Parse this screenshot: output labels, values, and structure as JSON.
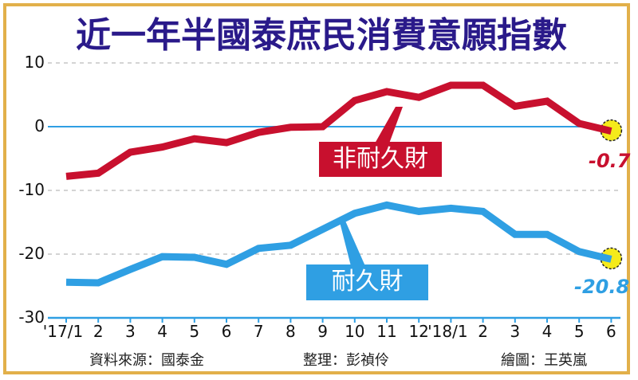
{
  "chart_data": {
    "type": "line",
    "title": "近一年半國泰庶民消費意願指數",
    "xlabel": "",
    "ylabel": "",
    "ylim": [
      -30,
      10
    ],
    "yticks": [
      10,
      0,
      -10,
      -20,
      -30
    ],
    "grid": "dashed horizontal at 10, -10, -20; solid zero line",
    "categories": [
      "'17/1",
      "2",
      "3",
      "4",
      "5",
      "6",
      "7",
      "8",
      "9",
      "10",
      "11",
      "12",
      "'18/1",
      "2",
      "3",
      "4",
      "5",
      "6"
    ],
    "series": [
      {
        "name": "非耐久財",
        "color": "#c8102e",
        "values": [
          -7.8,
          -7.3,
          -4.0,
          -3.2,
          -1.9,
          -2.5,
          -0.9,
          -0.1,
          0.0,
          4.1,
          5.5,
          4.6,
          6.5,
          6.5,
          3.2,
          4.0,
          0.5,
          -0.7
        ],
        "end_label": "-0.7"
      },
      {
        "name": "耐久財",
        "color": "#2f9fe3",
        "values": [
          -24.4,
          -24.5,
          -22.4,
          -20.4,
          -20.5,
          -21.6,
          -19.1,
          -18.6,
          -16.1,
          -13.6,
          -12.3,
          -13.3,
          -12.8,
          -13.3,
          -16.9,
          -16.9,
          -19.6,
          -20.8
        ],
        "end_label": "-20.8"
      }
    ],
    "annotations": [
      "-0.7",
      "-20.8"
    ],
    "legend_position": "inline labels"
  },
  "header": {
    "title": "近一年半國泰庶民消費意願指數"
  },
  "y_axis": {
    "ticks": [
      "10",
      "0",
      "-10",
      "-20",
      "-30"
    ]
  },
  "x_axis": {
    "ticks": [
      "'17/1",
      "2",
      "3",
      "4",
      "5",
      "6",
      "7",
      "8",
      "9",
      "10",
      "11",
      "12",
      "'18/1",
      "2",
      "3",
      "4",
      "5",
      "6"
    ]
  },
  "labels": {
    "nondurable": "非耐久財",
    "durable": "耐久財",
    "nondurable_end": "-0.7",
    "durable_end": "-20.8"
  },
  "credits": {
    "source": "資料來源：國泰金",
    "editor": "整理：彭禎伶",
    "graphics": "繪圖：王英嵐"
  },
  "colors": {
    "border": "#e2b04a",
    "title": "#2a1a8a",
    "nondurable": "#c8102e",
    "durable": "#2f9fe3",
    "highlight": "#f5ea1a"
  }
}
